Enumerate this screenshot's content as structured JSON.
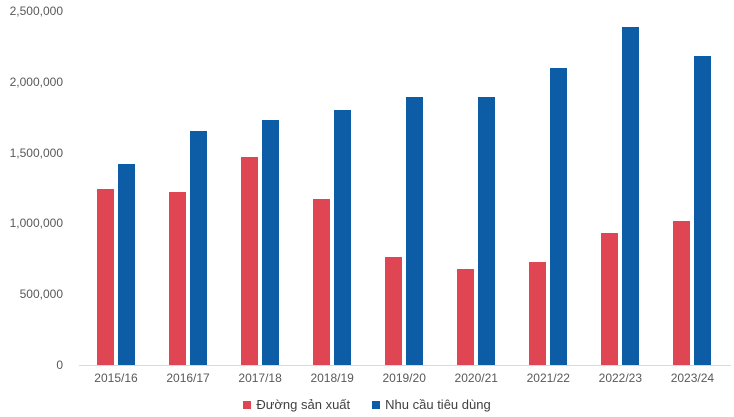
{
  "chart_data": {
    "type": "bar",
    "title": "",
    "xlabel": "",
    "ylabel": "",
    "categories": [
      "2015/16",
      "2016/17",
      "2017/18",
      "2018/19",
      "2019/20",
      "2020/21",
      "2021/22",
      "2022/23",
      "2023/24"
    ],
    "series": [
      {
        "name": "Đường sản xuất",
        "color": "#e04554",
        "values": [
          1240000,
          1220000,
          1470000,
          1170000,
          760000,
          680000,
          730000,
          930000,
          1020000
        ]
      },
      {
        "name": "Nhu cầu tiêu dùng",
        "color": "#0d5ca6",
        "values": [
          1420000,
          1650000,
          1730000,
          1800000,
          1890000,
          1890000,
          2100000,
          2390000,
          2180000
        ]
      }
    ],
    "ylim": [
      0,
      2500000
    ],
    "ytick_values": [
      0,
      500000,
      1000000,
      1500000,
      2000000,
      2500000
    ],
    "ytick_labels": [
      "0",
      "500,000",
      "1,000,000",
      "1,500,000",
      "2,000,000",
      "2,500,000"
    ],
    "grid": false,
    "legend_position": "bottom"
  }
}
